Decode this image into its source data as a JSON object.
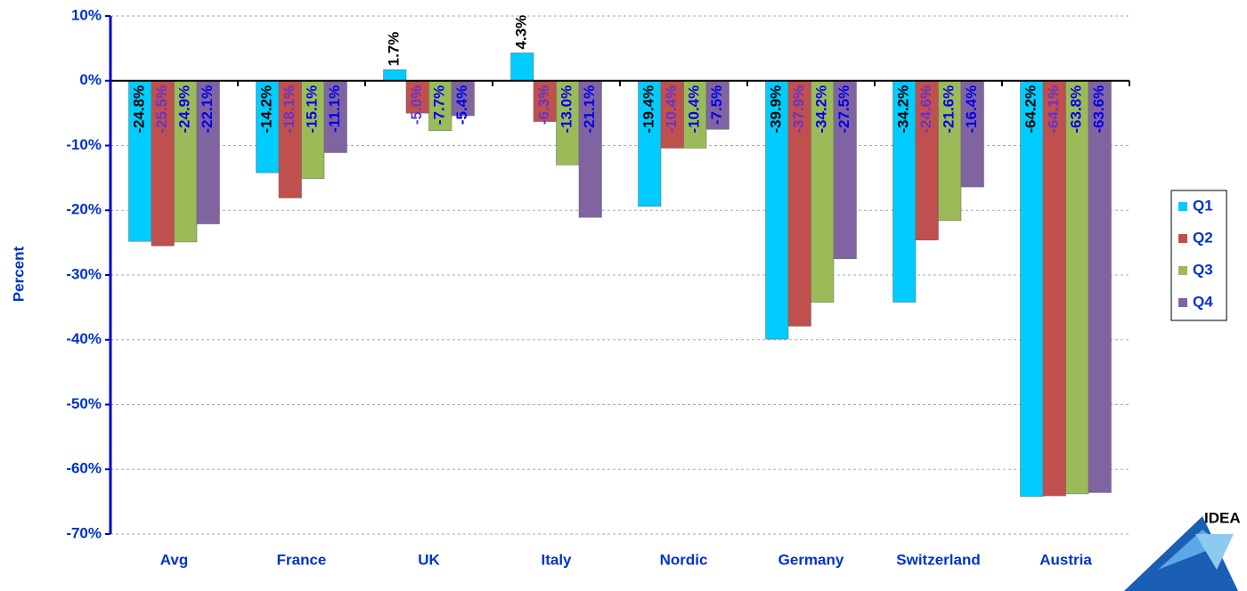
{
  "chart_data": {
    "type": "bar",
    "y_label": "Percent",
    "categories": [
      "Avg",
      "France",
      "UK",
      "Italy",
      "Nordic",
      "Germany",
      "Switzerland",
      "Austria"
    ],
    "series": [
      {
        "name": "Q1",
        "color": "#00ccff",
        "label_color": "#000000",
        "values": [
          -24.8,
          -14.2,
          1.7,
          4.3,
          -19.4,
          -39.9,
          -34.2,
          -64.2
        ],
        "value_labels": [
          "-24.8%",
          "-14.2%",
          "1.7%",
          "4.3%",
          "-19.4%",
          "-39.9%",
          "-34.2%",
          "-64.2%"
        ]
      },
      {
        "name": "Q2",
        "color": "#c0504d",
        "label_color": "#6633cc",
        "values": [
          -25.5,
          -18.1,
          -5.0,
          -6.3,
          -10.4,
          -37.9,
          -24.6,
          -64.1
        ],
        "value_labels": [
          "-25.5%",
          "-18.1%",
          "-5.0%",
          "-6.3%",
          "-10.4%",
          "-37.9%",
          "-24.6%",
          "-64.1%"
        ]
      },
      {
        "name": "Q3",
        "color": "#9bbb59",
        "label_color": "#0000ee",
        "values": [
          -24.9,
          -15.1,
          -7.7,
          -13.0,
          -10.4,
          -34.2,
          -21.6,
          -63.8
        ],
        "value_labels": [
          "-24.9%",
          "-15.1%",
          "-7.7%",
          "-13.0%",
          "-10.4%",
          "-34.2%",
          "-21.6%",
          "-63.8%"
        ]
      },
      {
        "name": "Q4",
        "color": "#8064a2",
        "label_color": "#0000ee",
        "values": [
          -22.1,
          -11.1,
          -5.4,
          -21.1,
          -7.5,
          -27.5,
          -16.4,
          -63.6
        ],
        "value_labels": [
          "-22.1%",
          "-11.1%",
          "-5.4%",
          "-21.1%",
          "-7.5%",
          "-27.5%",
          "-16.4%",
          "-63.6%"
        ]
      }
    ],
    "ylim": [
      -70,
      10
    ],
    "yticks": [
      {
        "value": -70,
        "label": "-70%"
      },
      {
        "value": -60,
        "label": "-60%"
      },
      {
        "value": -50,
        "label": "-50%"
      },
      {
        "value": -40,
        "label": "-40%"
      },
      {
        "value": -30,
        "label": "-30%"
      },
      {
        "value": -20,
        "label": "-20%"
      },
      {
        "value": -10,
        "label": "-10%"
      },
      {
        "value": 0,
        "label": "0%"
      },
      {
        "value": 10,
        "label": "10%"
      }
    ],
    "grid": true,
    "legend": "right"
  },
  "logo": "IDEA"
}
